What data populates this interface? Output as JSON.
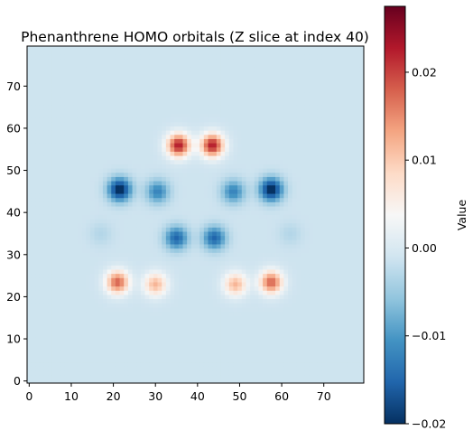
{
  "chart_data": {
    "type": "heatmap",
    "title": "Phenanthrene HOMO orbitals (Z slice at index 40)",
    "xlabel": "",
    "ylabel": "",
    "grid": false,
    "xlim": [
      -0.5,
      79.5
    ],
    "ylim": [
      -0.5,
      79.5
    ],
    "xticks": [
      0,
      10,
      20,
      30,
      40,
      50,
      60,
      70
    ],
    "yticks": [
      0,
      10,
      20,
      30,
      40,
      50,
      60,
      70
    ],
    "colormap": "RdBu_r",
    "colorbar": {
      "label": "Value",
      "range": [
        -0.02,
        0.0275
      ],
      "ticks": [
        -0.02,
        -0.01,
        0.0,
        0.01,
        0.02
      ],
      "tick_labels": [
        "−0.02",
        "−0.01",
        "0.00",
        "0.01",
        "0.02"
      ]
    },
    "lobes": [
      {
        "x": 35.5,
        "y": 56,
        "value": 0.024
      },
      {
        "x": 43.5,
        "y": 56,
        "value": 0.024
      },
      {
        "x": 21.5,
        "y": 45.5,
        "value": -0.02
      },
      {
        "x": 30.5,
        "y": 45,
        "value": -0.011
      },
      {
        "x": 48.5,
        "y": 45,
        "value": -0.011
      },
      {
        "x": 57.5,
        "y": 45.5,
        "value": -0.02
      },
      {
        "x": 35,
        "y": 34,
        "value": -0.014
      },
      {
        "x": 44,
        "y": 34,
        "value": -0.014
      },
      {
        "x": 21,
        "y": 23.5,
        "value": 0.019
      },
      {
        "x": 30,
        "y": 23,
        "value": 0.013
      },
      {
        "x": 49,
        "y": 23,
        "value": 0.013
      },
      {
        "x": 57.5,
        "y": 23.5,
        "value": 0.019
      },
      {
        "x": 17,
        "y": 35,
        "value": -0.002
      },
      {
        "x": 62,
        "y": 35,
        "value": -0.002
      }
    ],
    "background_value": -0.0012
  }
}
